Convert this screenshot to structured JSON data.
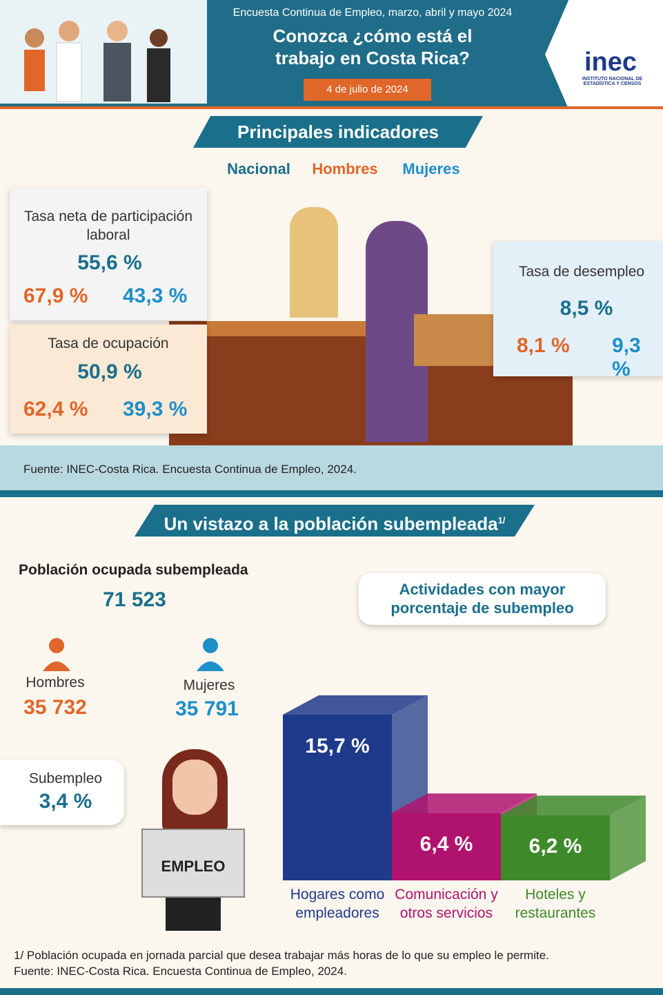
{
  "header": {
    "subtitle": "Encuesta Continua de Empleo, marzo, abril y mayo 2024",
    "title": "Conozca ¿cómo está el trabajo en Costa Rica?",
    "date": "4 de julio de 2024",
    "logo": "inec",
    "logo_sub": "INSTITUTO NACIONAL DE ESTADÍSTICA Y CENSOS"
  },
  "indicators": {
    "heading": "Principales indicadores",
    "legend": [
      "Nacional",
      "Hombres",
      "Mujeres"
    ],
    "items": [
      {
        "label": "Tasa neta de participación laboral",
        "nacional": "55,6 %",
        "hombres": "67,9 %",
        "mujeres": "43,3 %"
      },
      {
        "label": "Tasa de ocupación",
        "nacional": "50,9 %",
        "hombres": "62,4 %",
        "mujeres": "39,3 %"
      },
      {
        "label": "Tasa de desempleo",
        "nacional": "8,5 %",
        "hombres": "8,1 %",
        "mujeres": "9,3 %"
      }
    ],
    "source": "Fuente: INEC-Costa Rica. Encuesta Continua de Empleo, 2024."
  },
  "underemployment": {
    "heading": "Un vistazo a la población subempleada",
    "heading_note": "1/",
    "total_label": "Población ocupada subempleada",
    "total": "71 523",
    "men_label": "Hombres",
    "men": "35 732",
    "women_label": "Mujeres",
    "women": "35 791",
    "rate_label": "Subempleo",
    "rate": "3,4 %",
    "newspaper": "EMPLEO",
    "activities_title": "Actividades con mayor porcentaje de subempleo",
    "footnote": "1/ Población ocupada en jornada parcial que desea trabajar más horas de lo que su empleo le permite.",
    "source": "Fuente: INEC-Costa Rica. Encuesta Continua de Empleo, 2024."
  },
  "chart_data": {
    "type": "bar",
    "categories": [
      "Hogares como empleadores",
      "Comunicación y otros servicios",
      "Hoteles y restaurantes"
    ],
    "values": [
      15.7,
      6.4,
      6.2
    ],
    "value_labels": [
      "15,7 %",
      "6,4 %",
      "6,2 %"
    ],
    "colors": [
      "#1f3a8a",
      "#b0136e",
      "#3e8a2a"
    ]
  }
}
